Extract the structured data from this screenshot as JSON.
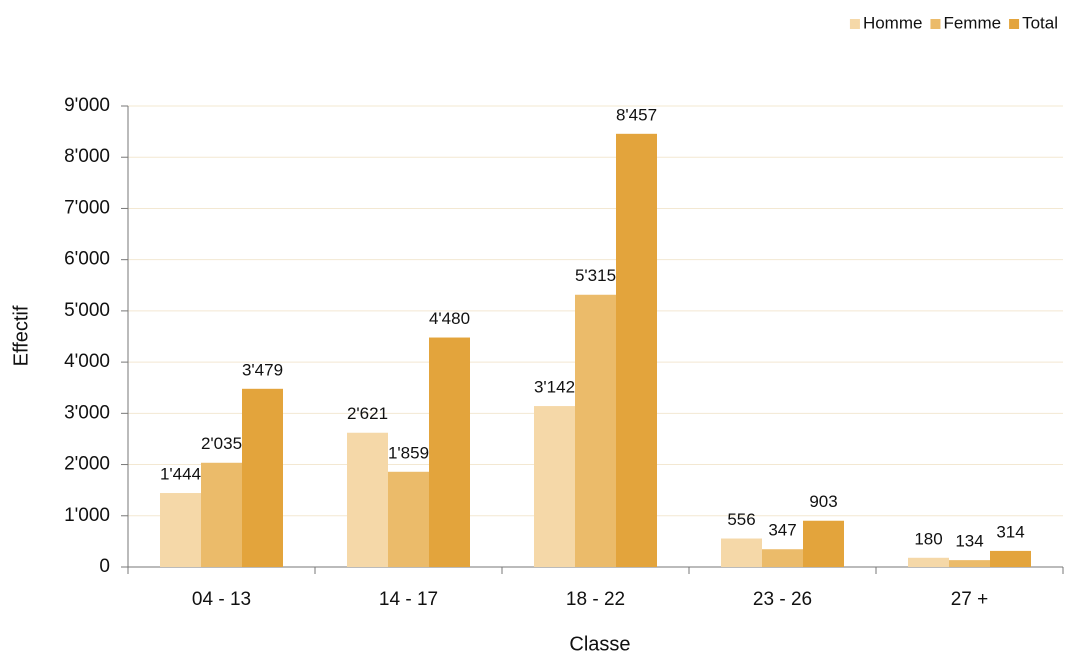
{
  "chart_data": {
    "type": "bar",
    "x_label": "Classe",
    "y_label": "Effectif",
    "categories": [
      "04 - 13",
      "14 - 17",
      "18 - 22",
      "23 - 26",
      "27 +"
    ],
    "series": [
      {
        "name": "Homme",
        "color": "#f5d8a8",
        "values": [
          1444,
          2621,
          3142,
          556,
          180
        ],
        "value_labels": [
          "1'444",
          "2'621",
          "3'142",
          "556",
          "180"
        ]
      },
      {
        "name": "Femme",
        "color": "#ebbb6a",
        "values": [
          2035,
          1859,
          5315,
          347,
          134
        ],
        "value_labels": [
          "2'035",
          "1'859",
          "5'315",
          "347",
          "134"
        ]
      },
      {
        "name": "Total",
        "color": "#e3a43c",
        "values": [
          3479,
          4480,
          8457,
          903,
          314
        ],
        "value_labels": [
          "3'479",
          "4'480",
          "8'457",
          "903",
          "314"
        ]
      }
    ],
    "ylim": [
      0,
      9000
    ],
    "yticks": [
      0,
      {
        "value": 1000,
        "label": "1'000"
      },
      {
        "value": 2000,
        "label": "2'000"
      },
      {
        "value": 3000,
        "label": "3'000"
      },
      {
        "value": 4000,
        "label": "4'000"
      },
      {
        "value": 5000,
        "label": "5'000"
      },
      {
        "value": 6000,
        "label": "6'000"
      },
      {
        "value": 7000,
        "label": "7'000"
      },
      {
        "value": 8000,
        "label": "8'000"
      },
      {
        "value": 9000,
        "label": "9'000"
      }
    ],
    "grid": true,
    "legend": "top-right"
  }
}
